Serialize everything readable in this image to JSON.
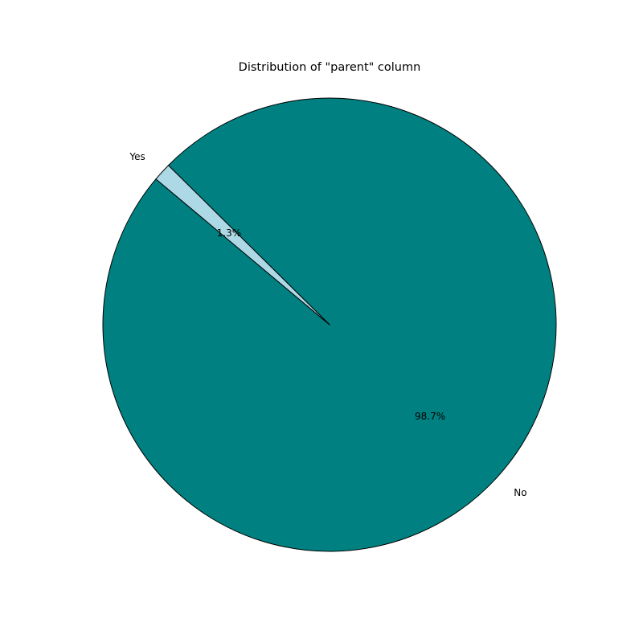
{
  "chart_data": {
    "type": "pie",
    "title": "Distribution of \"parent\" column",
    "categories": [
      "No",
      "Yes"
    ],
    "values": [
      98.7,
      1.3
    ],
    "percent_labels": [
      "98.7%",
      "1.3%"
    ],
    "colors": [
      "#008080",
      "#add8e6"
    ],
    "edge_color": "#000000",
    "start_angle_deg": 140,
    "legend": "none"
  }
}
